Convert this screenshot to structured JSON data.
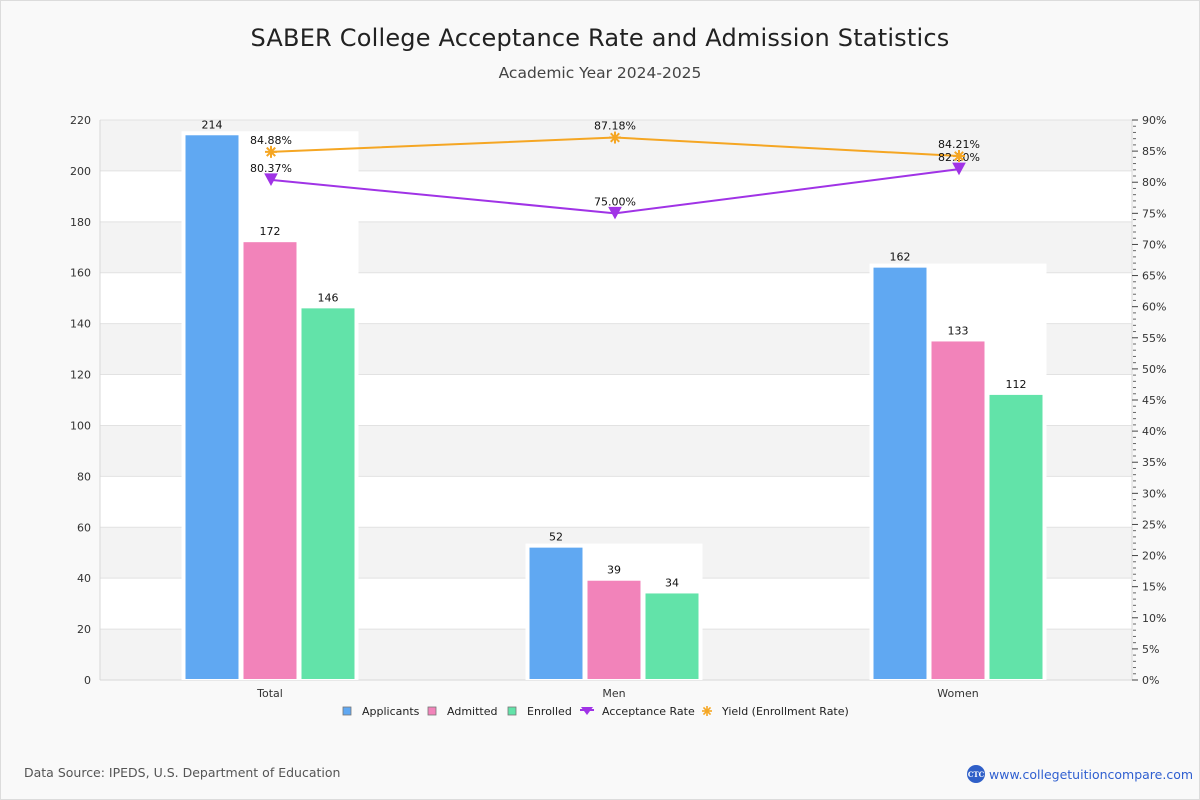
{
  "title": "SABER College Acceptance Rate and Admission Statistics",
  "subtitle": "Academic Year 2024-2025",
  "footer": {
    "source": "Data Source: IPEDS, U.S. Department of Education",
    "brand_logo": "CTC",
    "brand_url": "www.collegetuitioncompare.com"
  },
  "chart_data": {
    "type": "bar",
    "title": "SABER College Acceptance Rate and Admission Statistics",
    "subtitle": "Academic Year 2024-2025",
    "categories": [
      "Total",
      "Men",
      "Women"
    ],
    "series": [
      {
        "name": "Applicants",
        "type": "bar",
        "axis": "left",
        "color": "#60a8f2",
        "values": [
          214,
          52,
          162
        ]
      },
      {
        "name": "Admitted",
        "type": "bar",
        "axis": "left",
        "color": "#f283ba",
        "values": [
          172,
          39,
          133
        ]
      },
      {
        "name": "Enrolled",
        "type": "bar",
        "axis": "left",
        "color": "#62e3a9",
        "values": [
          146,
          34,
          112
        ]
      },
      {
        "name": "Acceptance Rate",
        "type": "line",
        "axis": "right",
        "color": "#a033e6",
        "marker": "triangle-down",
        "values": [
          80.37,
          75.0,
          82.1
        ],
        "labels": [
          "80.37%",
          "75.00%",
          "82.10%"
        ]
      },
      {
        "name": "Yield (Enrollment Rate)",
        "type": "line",
        "axis": "right",
        "color": "#f5a623",
        "marker": "asterisk",
        "values": [
          84.88,
          87.18,
          84.21
        ],
        "labels": [
          "84.88%",
          "87.18%",
          "84.21%"
        ]
      }
    ],
    "y_left": {
      "min": 0,
      "max": 220,
      "ticks": [
        0,
        20,
        40,
        60,
        80,
        100,
        120,
        140,
        160,
        180,
        200,
        220
      ]
    },
    "y_right": {
      "min": 0,
      "max": 90,
      "ticks": [
        "0%",
        "5%",
        "10%",
        "15%",
        "20%",
        "25%",
        "30%",
        "35%",
        "40%",
        "45%",
        "50%",
        "55%",
        "60%",
        "65%",
        "70%",
        "75%",
        "80%",
        "85%",
        "90%"
      ]
    },
    "xlabel": "",
    "ylabel": "",
    "grid": true,
    "legend_position": "bottom"
  }
}
